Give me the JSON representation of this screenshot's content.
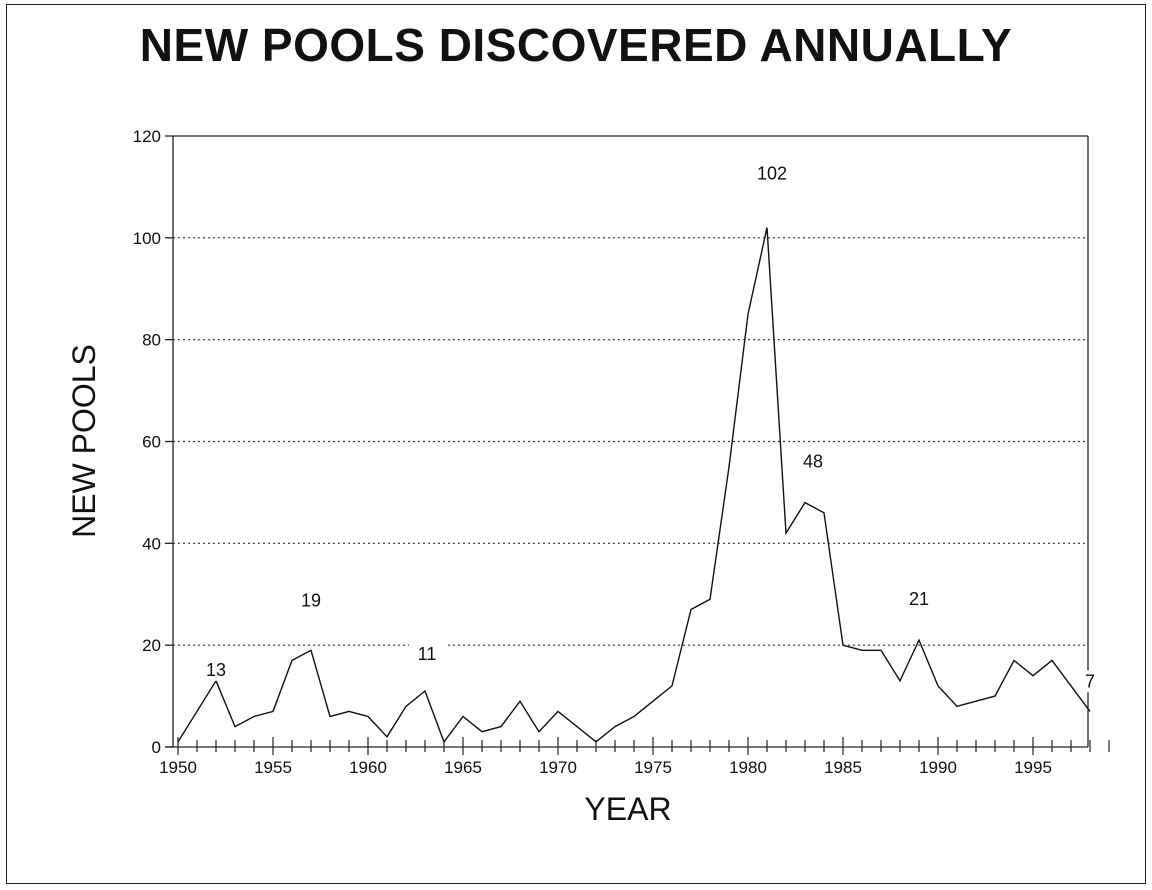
{
  "chart_data": {
    "type": "line",
    "title": "NEW POOLS DISCOVERED ANNUALLY",
    "xlabel": "YEAR",
    "ylabel": "NEW POOLS",
    "xlim": [
      1950,
      1999
    ],
    "ylim": [
      0,
      120
    ],
    "xticks": [
      1950,
      1955,
      1960,
      1965,
      1970,
      1975,
      1980,
      1985,
      1990,
      1995
    ],
    "yticks": [
      0,
      20,
      40,
      60,
      80,
      100,
      120
    ],
    "grid": "horizontal dotted",
    "x": [
      1950,
      1951,
      1952,
      1953,
      1954,
      1955,
      1956,
      1957,
      1958,
      1959,
      1960,
      1961,
      1962,
      1963,
      1964,
      1965,
      1966,
      1967,
      1968,
      1969,
      1970,
      1971,
      1972,
      1973,
      1974,
      1975,
      1976,
      1977,
      1978,
      1979,
      1980,
      1981,
      1982,
      1983,
      1984,
      1985,
      1986,
      1987,
      1988,
      1989,
      1990,
      1991,
      1992,
      1993,
      1994,
      1995,
      1996,
      1997,
      1998
    ],
    "values": [
      1,
      7,
      13,
      4,
      6,
      7,
      17,
      19,
      6,
      7,
      6,
      2,
      8,
      11,
      1,
      6,
      3,
      4,
      9,
      3,
      7,
      4,
      1,
      4,
      6,
      9,
      12,
      27,
      29,
      55,
      85,
      102,
      42,
      48,
      46,
      20,
      19,
      19,
      13,
      21,
      12,
      8,
      9,
      10,
      17,
      14,
      17,
      12,
      7
    ],
    "annotations": [
      {
        "x": 1952,
        "y": 13,
        "text": "13"
      },
      {
        "x": 1957,
        "y": 19,
        "text": "19"
      },
      {
        "x": 1963,
        "y": 11,
        "text": "11"
      },
      {
        "x": 1981,
        "y": 102,
        "text": "102"
      },
      {
        "x": 1983,
        "y": 48,
        "text": "48"
      },
      {
        "x": 1989,
        "y": 21,
        "text": "21"
      },
      {
        "x": 1998,
        "y": 7,
        "text": "7"
      }
    ]
  }
}
